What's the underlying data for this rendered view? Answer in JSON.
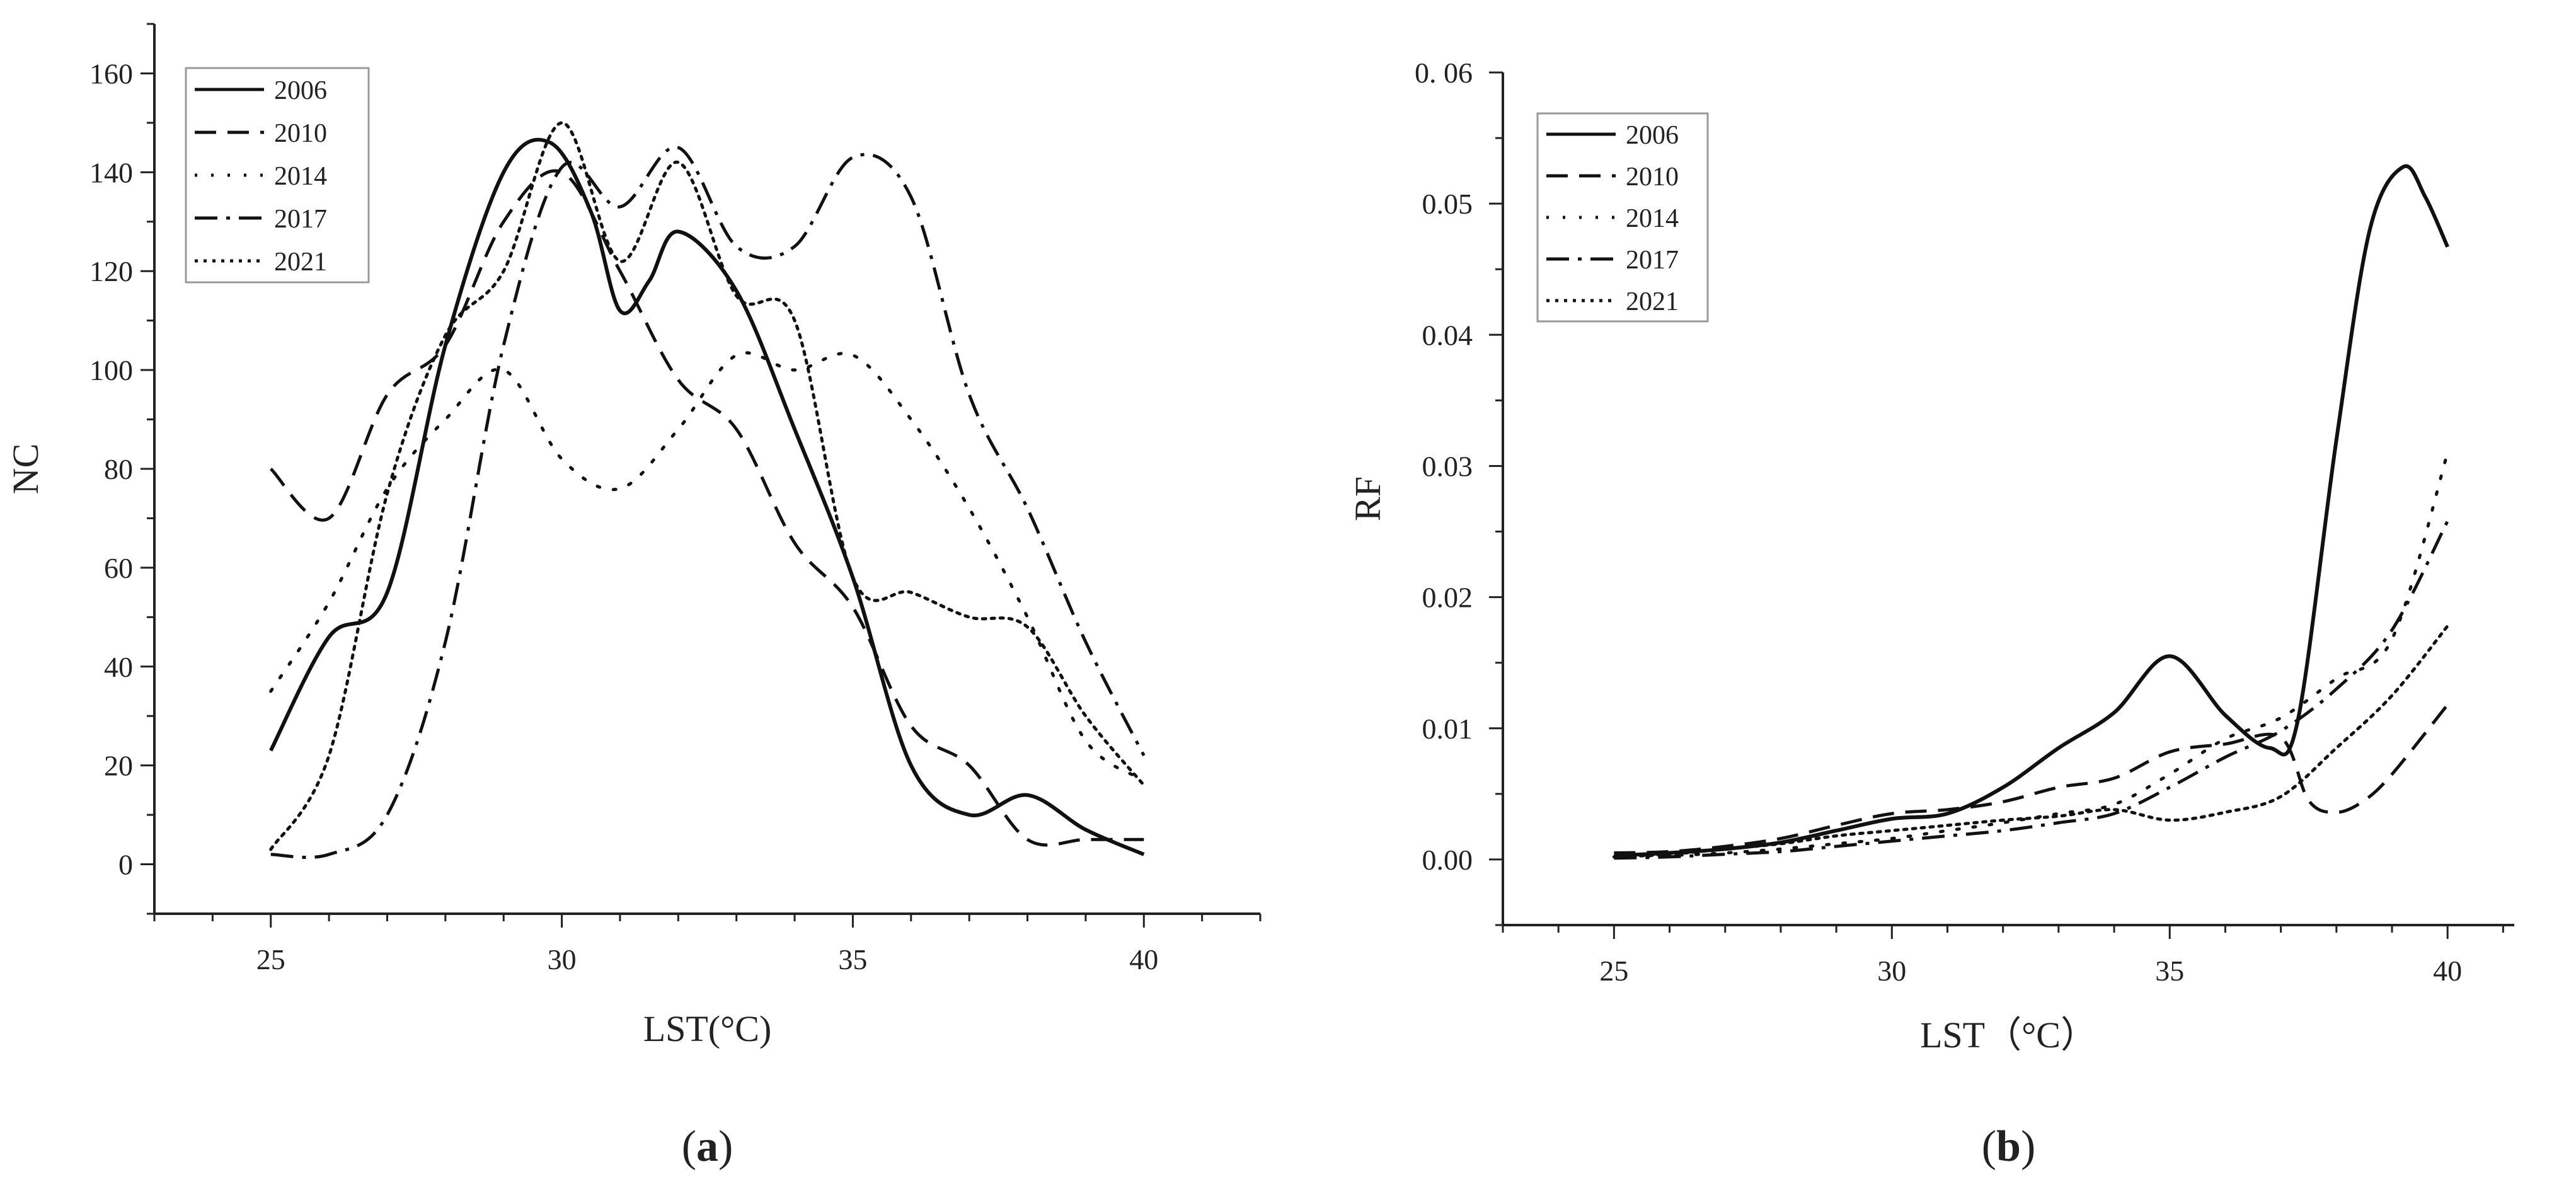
{
  "chart_data": [
    {
      "id": "a",
      "type": "line",
      "xlabel": "LST(°C)",
      "ylabel": "NC",
      "xlim": [
        23,
        42
      ],
      "ylim": [
        -10,
        170
      ],
      "xticks": [
        25,
        30,
        35,
        40
      ],
      "yticks": [
        0,
        20,
        40,
        60,
        80,
        100,
        120,
        140,
        160
      ],
      "ytick_labels": [
        "0",
        "20",
        "40",
        "60",
        "80",
        "100",
        "120",
        "140",
        "160"
      ],
      "legend_position": "top-left",
      "panel": {
        "open": "(",
        "letter": "a",
        "close": ")"
      },
      "series": [
        {
          "name": "2006",
          "style": "solid",
          "x": [
            25,
            26,
            27,
            28,
            29,
            29.8,
            30.5,
            31,
            31.5,
            32,
            33,
            34,
            35,
            36,
            37,
            38,
            39,
            40
          ],
          "values": [
            23,
            46,
            55,
            105,
            140,
            146,
            132,
            112,
            118,
            128,
            116,
            88,
            58,
            20,
            10,
            14,
            7,
            2
          ]
        },
        {
          "name": "2010",
          "style": "dashed",
          "x": [
            25,
            26,
            27,
            28,
            29,
            30,
            31,
            32,
            33,
            34,
            35,
            36,
            37,
            38,
            39,
            40
          ],
          "values": [
            80,
            70,
            95,
            105,
            130,
            140,
            120,
            98,
            88,
            65,
            52,
            28,
            20,
            5,
            5,
            5
          ]
        },
        {
          "name": "2014",
          "style": "dotted",
          "x": [
            25,
            26,
            27,
            28,
            29,
            30,
            31,
            32,
            33,
            34,
            35,
            36,
            37,
            38,
            39,
            40
          ],
          "values": [
            35,
            53,
            76,
            90,
            100,
            82,
            76,
            88,
            103,
            100,
            103,
            90,
            72,
            50,
            25,
            17
          ]
        },
        {
          "name": "2017",
          "style": "dashdot",
          "x": [
            25,
            26,
            27,
            28,
            29,
            30,
            31,
            32,
            33,
            34,
            35,
            36,
            37,
            38,
            39,
            40
          ],
          "values": [
            2,
            2,
            10,
            45,
            105,
            141,
            133,
            145,
            125,
            125,
            143,
            135,
            95,
            72,
            45,
            22
          ]
        },
        {
          "name": "2021",
          "style": "densely-dotted",
          "x": [
            25,
            26,
            27,
            28,
            29,
            30,
            31,
            32,
            33,
            34,
            35,
            36,
            37,
            38,
            39,
            40
          ],
          "values": [
            3,
            22,
            75,
            107,
            120,
            150,
            122,
            142,
            115,
            110,
            58,
            55,
            50,
            48,
            30,
            16
          ]
        }
      ]
    },
    {
      "id": "b",
      "type": "line",
      "xlabel": "LST（°C）",
      "ylabel": "RF",
      "xlim": [
        23,
        41.2
      ],
      "ylim": [
        -0.005,
        0.06
      ],
      "xticks": [
        25,
        30,
        35,
        40
      ],
      "yticks": [
        0,
        0.01,
        0.02,
        0.03,
        0.04,
        0.05,
        0.06
      ],
      "ytick_labels": [
        "0.00",
        "0.01",
        "0.02",
        "0.03",
        "0.04",
        "0.05",
        "0. 06"
      ],
      "legend_position": "top-left",
      "panel": {
        "open": "(",
        "letter": "b",
        "close": ")"
      },
      "series": [
        {
          "name": "2006",
          "style": "solid",
          "x": [
            25,
            26,
            27,
            28,
            29,
            30,
            31,
            32,
            33,
            34,
            35,
            36,
            36.8,
            37.3,
            38,
            38.6,
            39.2,
            39.6,
            40
          ],
          "values": [
            0.0003,
            0.0005,
            0.0008,
            0.0013,
            0.0022,
            0.0031,
            0.0035,
            0.0055,
            0.0085,
            0.0112,
            0.0155,
            0.011,
            0.0085,
            0.0105,
            0.032,
            0.048,
            0.0528,
            0.0505,
            0.0467
          ]
        },
        {
          "name": "2010",
          "style": "dashed",
          "x": [
            25,
            26,
            27,
            28,
            29,
            30,
            31,
            32,
            33,
            34,
            35,
            36,
            37,
            37.5,
            38,
            38.5,
            39,
            40
          ],
          "values": [
            0.0005,
            0.0006,
            0.001,
            0.0016,
            0.0026,
            0.0035,
            0.0038,
            0.0044,
            0.0055,
            0.0062,
            0.0082,
            0.0088,
            0.0093,
            0.0045,
            0.0036,
            0.0045,
            0.0065,
            0.0118
          ]
        },
        {
          "name": "2014",
          "style": "dotted",
          "x": [
            25,
            26,
            27,
            28,
            29,
            30,
            31,
            32,
            33,
            34,
            35,
            36,
            37,
            38,
            39,
            40
          ],
          "values": [
            0.0002,
            0.0003,
            0.0005,
            0.0008,
            0.0012,
            0.0016,
            0.0022,
            0.0028,
            0.0035,
            0.0042,
            0.0065,
            0.0092,
            0.0108,
            0.0138,
            0.0168,
            0.031
          ]
        },
        {
          "name": "2017",
          "style": "dashdot",
          "x": [
            25,
            26,
            27,
            28,
            29,
            30,
            31,
            32,
            33,
            34,
            35,
            36,
            37,
            38,
            39,
            40
          ],
          "values": [
            0.0001,
            0.0002,
            0.0004,
            0.0006,
            0.001,
            0.0014,
            0.0018,
            0.0022,
            0.0028,
            0.0035,
            0.0055,
            0.0078,
            0.0098,
            0.013,
            0.0175,
            0.0258
          ]
        },
        {
          "name": "2021",
          "style": "densely-dotted",
          "x": [
            25,
            26,
            27,
            28,
            29,
            30,
            31,
            32,
            33,
            34,
            35,
            36,
            37,
            38,
            39,
            40
          ],
          "values": [
            0.0002,
            0.0004,
            0.0008,
            0.0012,
            0.0018,
            0.0022,
            0.0026,
            0.003,
            0.0033,
            0.0038,
            0.003,
            0.0036,
            0.0048,
            0.0085,
            0.0125,
            0.0178
          ]
        }
      ]
    }
  ]
}
